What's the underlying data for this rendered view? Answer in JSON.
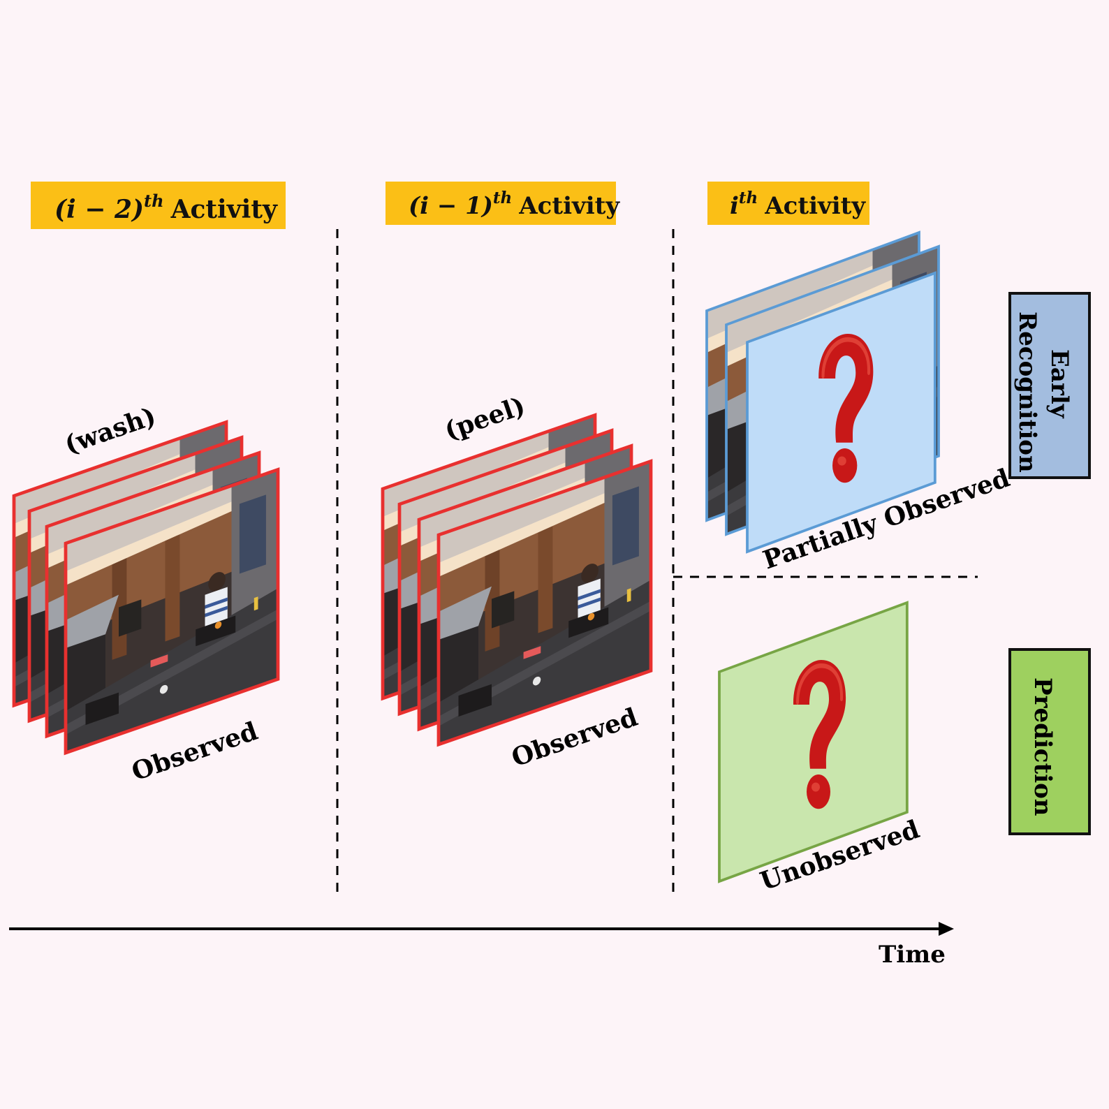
{
  "headers": {
    "col1": {
      "prefix": "(i − 2)",
      "sup": "th",
      "word": "Activity"
    },
    "col2": {
      "prefix": "(i − 1)",
      "sup": "th",
      "word": "Activity"
    },
    "col3": {
      "prefix": "i",
      "sup": "th",
      "word": "Activity"
    }
  },
  "actions": {
    "col1": "(wash)",
    "col2": "(peel)"
  },
  "states": {
    "col1": "Observed",
    "col2": "Observed",
    "col3": "Partially Observed",
    "col3_bottom": "Unobserved"
  },
  "tasks": {
    "early_line1": "Early",
    "early_line2": "Recognition",
    "prediction": "Prediction"
  },
  "axis": {
    "label": "Time"
  },
  "colors": {
    "background": "#fdf4f8",
    "header_bg": "#fbbf16",
    "observed_frame": "#e8302f",
    "partial_frame": "#5b9bd5",
    "partial_fill": "#bfdcf8",
    "unobserved_frame": "#77a545",
    "unobserved_fill": "#c9e6ad",
    "early_box": "#a3bddf",
    "prediction_box": "#9ed05f",
    "question_mark": "#c81818"
  },
  "icons": {
    "frame": "kitchen-video-frame",
    "question": "question-mark-icon"
  }
}
